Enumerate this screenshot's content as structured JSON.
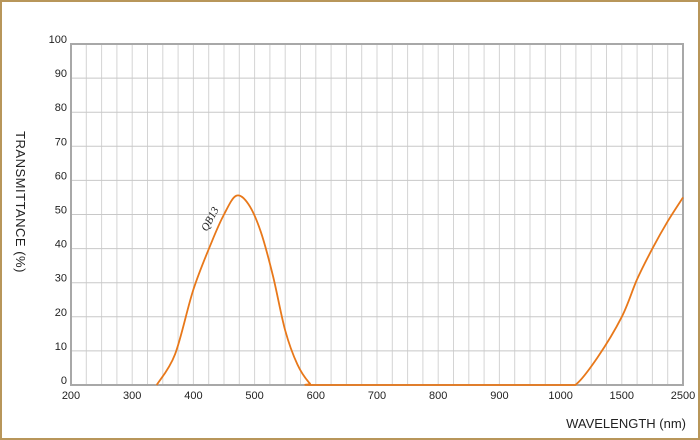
{
  "chart_data": {
    "type": "line",
    "xlabel": "WAVELENGTH (nm)",
    "ylabel": "TRANSMITTANCE  (%)",
    "x_ticks": [
      "200",
      "300",
      "400",
      "500",
      "600",
      "700",
      "800",
      "900",
      "1000",
      "1500",
      "2500"
    ],
    "y_ticks": [
      "0",
      "10",
      "20",
      "30",
      "40",
      "50",
      "60",
      "70",
      "80",
      "90",
      "100"
    ],
    "ylim": [
      0,
      100
    ],
    "xlim": [
      200,
      2500
    ],
    "x_scale": "piecewise-nonlinear",
    "grid": true,
    "series": [
      {
        "name": "QB13",
        "color": "#e8781a",
        "points": [
          [
            340,
            0
          ],
          [
            370,
            9
          ],
          [
            400,
            28
          ],
          [
            430,
            42
          ],
          [
            450,
            50
          ],
          [
            470,
            55.5
          ],
          [
            490,
            53
          ],
          [
            510,
            45
          ],
          [
            530,
            32
          ],
          [
            550,
            16
          ],
          [
            570,
            6
          ],
          [
            590,
            0.5
          ],
          [
            600,
            0
          ],
          [
            800,
            0
          ],
          [
            1000,
            0
          ],
          [
            1120,
            0
          ],
          [
            1300,
            8
          ],
          [
            1500,
            20
          ],
          [
            1750,
            31
          ],
          [
            2000,
            40
          ],
          [
            2250,
            48
          ],
          [
            2500,
            55
          ]
        ]
      }
    ]
  }
}
